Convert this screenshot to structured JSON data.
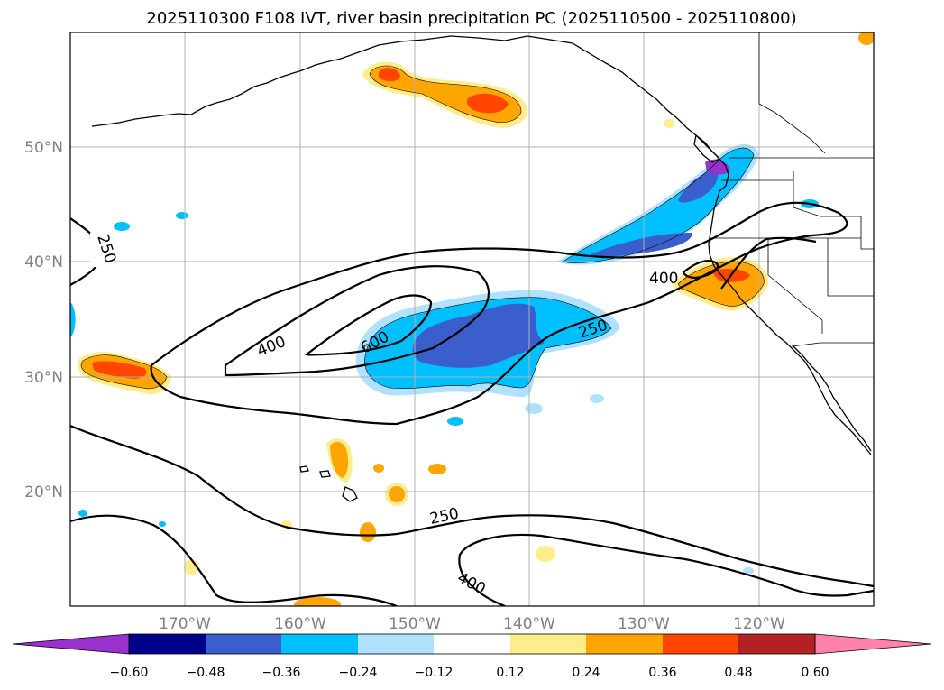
{
  "title": "2025110300 F108 IVT, river basin precipitation PC (2025110500 - 2025110800)",
  "map": {
    "lon_ticks": [
      {
        "lon": -170,
        "label": "170°W"
      },
      {
        "lon": -160,
        "label": "160°W"
      },
      {
        "lon": -150,
        "label": "150°W"
      },
      {
        "lon": -140,
        "label": "140°W"
      },
      {
        "lon": -130,
        "label": "130°W"
      },
      {
        "lon": -120,
        "label": "120°W"
      }
    ],
    "lat_ticks": [
      {
        "lat": 50,
        "label": "50°N"
      },
      {
        "lat": 40,
        "label": "40°N"
      },
      {
        "lat": 30,
        "label": "30°N"
      },
      {
        "lat": 20,
        "label": "20°N"
      }
    ],
    "ivt_contour_labels": [
      {
        "id": "c250-west",
        "text": "250"
      },
      {
        "id": "c400-center",
        "text": "400"
      },
      {
        "id": "c600",
        "text": "600"
      },
      {
        "id": "c250-center",
        "text": "250"
      },
      {
        "id": "c400-coast",
        "text": "400"
      },
      {
        "id": "c250-south",
        "text": "250"
      },
      {
        "id": "c400-south",
        "text": "400"
      }
    ]
  },
  "colorbar": {
    "ticks": [
      "−0.60",
      "−0.48",
      "−0.36",
      "−0.24",
      "−0.12",
      "0.12",
      "0.24",
      "0.36",
      "0.48",
      "0.60"
    ],
    "colors": {
      "below": "#9932cc",
      "bins": [
        "#00008b",
        "#3a5fcd",
        "#00bfff",
        "#b0e2ff",
        "#ffffff",
        "#ffec8b",
        "#ffa500",
        "#ff4500",
        "#b22222"
      ],
      "above": "#ff82ab"
    }
  }
}
